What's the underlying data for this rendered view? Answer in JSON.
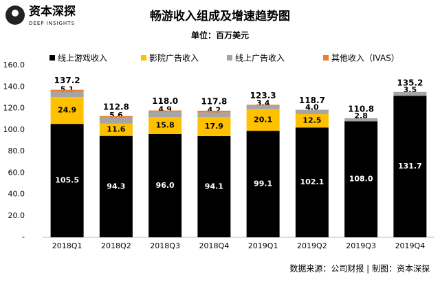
{
  "header": {
    "logo": "资本深探",
    "logo_sub": "DEEP INSIGHTS"
  },
  "chart_data": {
    "type": "stacked-bar",
    "title": "畅游收入组成及增速趋势图",
    "subtitle": "单位：百万美元",
    "categories": [
      "2018Q1",
      "2018Q2",
      "2018Q3",
      "2018Q4",
      "2019Q1",
      "2019Q2",
      "2019Q3",
      "2019Q4"
    ],
    "series": [
      {
        "name": "线上游戏收入",
        "color": "#000000",
        "label_color": "#ffffff",
        "values": [
          105.5,
          94.3,
          96.0,
          94.1,
          99.1,
          102.1,
          108.0,
          131.7
        ],
        "value_labels": [
          "105.5",
          "94.3",
          "96.0",
          "94.1",
          "99.1",
          "102.1",
          "108.0",
          "131.7"
        ]
      },
      {
        "name": "影院广告收入",
        "color": "#FFC000",
        "label_color": "#000000",
        "values": [
          24.9,
          11.6,
          15.8,
          17.9,
          20.1,
          12.5,
          0,
          0
        ],
        "value_labels": [
          "24.9",
          "11.6",
          "15.8",
          "17.9",
          "20.1",
          "12.5",
          null,
          null
        ]
      },
      {
        "name": "线上广告收入",
        "color": "#A5A5A5",
        "label_color": "#000000",
        "values": [
          5.1,
          5.6,
          4.9,
          4.2,
          3.4,
          4.0,
          2.8,
          3.5
        ],
        "value_labels": [
          "5.1",
          "5.6",
          "4.9",
          "4.2",
          "3.4",
          "4.0",
          "2.8",
          "3.5"
        ]
      },
      {
        "name": "其他收入（IVAS）",
        "color": "#ED7D31",
        "label_color": "#000000",
        "values": [
          1.7,
          1.3,
          1.3,
          1.6,
          0.7,
          0.1,
          0,
          0
        ],
        "value_labels": [
          null,
          null,
          null,
          null,
          null,
          null,
          null,
          null
        ]
      }
    ],
    "totals": [
      137.2,
      112.8,
      118.0,
      117.8,
      123.3,
      118.7,
      110.8,
      135.2
    ],
    "total_labels": [
      "137.2",
      "112.8",
      "118.0",
      "117.8",
      "123.3",
      "118.7",
      "110.8",
      "135.2"
    ],
    "ylim": [
      0,
      160
    ],
    "yticks": [
      {
        "value": 0,
        "label": "-"
      },
      {
        "value": 20,
        "label": "20.0"
      },
      {
        "value": 40,
        "label": "40.0"
      },
      {
        "value": 60,
        "label": "60.0"
      },
      {
        "value": 80,
        "label": "80.0"
      },
      {
        "value": 100,
        "label": "100.0"
      },
      {
        "value": 120,
        "label": "120.0"
      },
      {
        "value": 140,
        "label": "140.0"
      },
      {
        "value": 160,
        "label": "160.0"
      }
    ],
    "legend": "top",
    "source": "数据来源：公司财报 | 制图：资本深探"
  }
}
